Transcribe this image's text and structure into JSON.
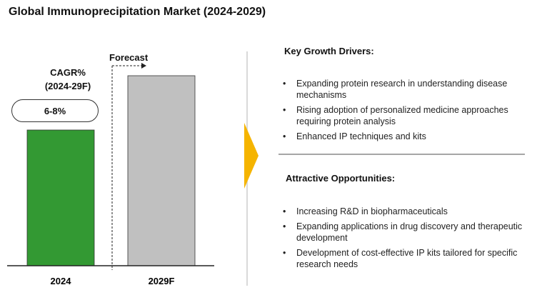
{
  "title": "Global Immunoprecipitation Market (2024-2029)",
  "cagr": {
    "label_line1": "CAGR%",
    "label_line2": "(2024-29F)",
    "value": "6-8%"
  },
  "forecast_label": "Forecast",
  "colors": {
    "bar_2024": "#339933",
    "bar_2029F": "#c0c0c0",
    "arrow": "#f5b400"
  },
  "chart_data": {
    "type": "bar",
    "categories": [
      "2024",
      "2029F"
    ],
    "values": [
      1.0,
      1.4
    ],
    "title": "Global Immunoprecipitation Market (2024-2029)",
    "xlabel": "",
    "ylabel": "",
    "ylim": [
      0,
      1.6
    ],
    "grid": false,
    "legend": "none"
  },
  "growth_drivers": {
    "title": "Key Growth Drivers:",
    "items": [
      "Expanding protein research in understanding disease mechanisms",
      "Rising adoption of personalized medicine approaches requiring protein analysis",
      "Enhanced IP techniques and kits"
    ]
  },
  "opportunities": {
    "title": "Attractive Opportunities:",
    "items": [
      "Increasing R&D in biopharmaceuticals",
      "Expanding applications in drug discovery and therapeutic development",
      "Development of cost-effective IP kits tailored for specific research needs"
    ]
  }
}
